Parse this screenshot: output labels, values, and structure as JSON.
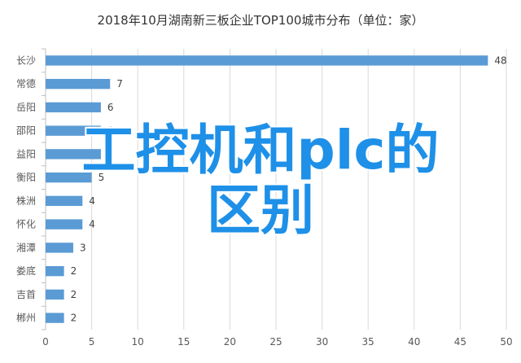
{
  "chart_data": {
    "type": "bar",
    "orientation": "horizontal",
    "title": "2018年10月湖南新三板企业TOP100城市分布（单位：家）",
    "categories": [
      "长沙",
      "常德",
      "岳阳",
      "邵阳",
      "益阳",
      "衡阳",
      "株洲",
      "怀化",
      "湘潭",
      "娄底",
      "吉首",
      "郴州"
    ],
    "values": [
      48,
      7,
      6,
      6,
      6,
      5,
      4,
      4,
      3,
      2,
      2,
      2
    ],
    "xlim": [
      0,
      50
    ],
    "xticks": [
      0,
      5,
      10,
      15,
      20,
      25,
      30,
      35,
      40,
      45,
      50
    ],
    "grid": true,
    "bar_color": "#5b9bd5",
    "data_labels": true
  },
  "watermark": {
    "line1": "工控机和plc的",
    "line2": "区别",
    "color": "#1e90e8"
  }
}
